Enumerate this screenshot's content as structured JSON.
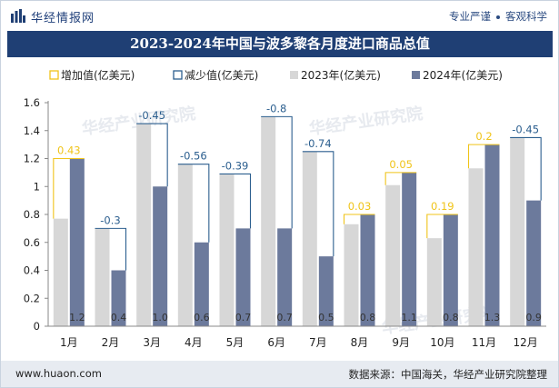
{
  "header": {
    "brand": "华经情报网",
    "tagline_left": "专业严谨",
    "tagline_right": "客观科学"
  },
  "watermark": "华经产业研究院",
  "footer": {
    "website": "www.huaon.com",
    "source": "数据来源：中国海关，华经产业研究院整理"
  },
  "colors": {
    "title_bg": "#1f3f74",
    "bar_2023": "#d7d7d7",
    "bar_2024": "#6c7a9c",
    "increase": "#f0c419",
    "decrease": "#2c5f8f"
  },
  "chart_data": {
    "type": "bar",
    "title": "2023-2024年中国与波多黎各月度进口商品总值",
    "categories": [
      "1月",
      "2月",
      "3月",
      "4月",
      "5月",
      "6月",
      "7月",
      "8月",
      "9月",
      "10月",
      "11月",
      "12月"
    ],
    "series": [
      {
        "name": "2023年(亿美元)",
        "values": [
          0.77,
          0.7,
          1.45,
          1.16,
          1.09,
          1.5,
          1.25,
          0.73,
          1.01,
          0.63,
          1.13,
          1.35
        ]
      },
      {
        "name": "2024年(亿美元)",
        "values": [
          1.2,
          0.4,
          1.0,
          0.6,
          0.7,
          0.7,
          0.5,
          0.8,
          1.1,
          0.8,
          1.3,
          0.9
        ]
      }
    ],
    "bar_value_labels": [
      "1.2",
      "0.4",
      "1.0",
      "0.6",
      "0.7",
      "0.7",
      "0.5",
      "0.8",
      "1.1",
      "0.8",
      "1.3",
      "0.9"
    ],
    "change_labels": [
      "0.43",
      "-0.3",
      "-0.45",
      "-0.56",
      "-0.39",
      "-0.8",
      "-0.74",
      "0.03",
      "0.05",
      "0.19",
      "0.2",
      "-0.45"
    ],
    "change_values": [
      0.43,
      -0.3,
      -0.45,
      -0.56,
      -0.39,
      -0.8,
      -0.74,
      0.03,
      0.05,
      0.19,
      0.2,
      -0.45
    ],
    "legend": [
      "增加值(亿美元)",
      "减少值(亿美元)",
      "2023年(亿美元)",
      "2024年(亿美元)"
    ],
    "legend_position": "top-left",
    "yticks": [
      "0",
      "0.2",
      "0.4",
      "0.6",
      "0.8",
      "1",
      "1.2",
      "1.4",
      "1.6"
    ],
    "ylim": [
      0,
      1.6
    ],
    "grid": false
  }
}
